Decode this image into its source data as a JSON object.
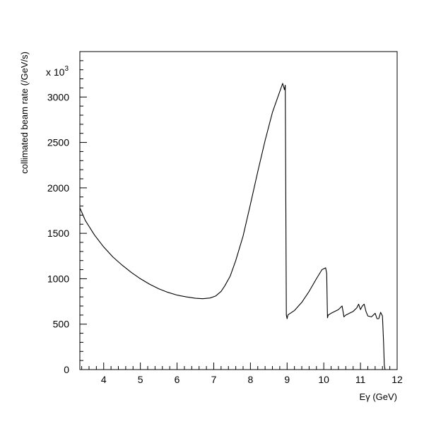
{
  "chart_data": {
    "type": "line",
    "title": "",
    "xlabel": "Eγ (GeV)",
    "ylabel": "collimated beam rate (/GeV/s)",
    "y_multiplier": "x 10",
    "y_multiplier_exponent": "3",
    "xlim": [
      3.35,
      12
    ],
    "ylim": [
      0,
      3500
    ],
    "grid": false,
    "legend": "none",
    "x_ticks": [
      4,
      5,
      6,
      7,
      8,
      9,
      10,
      11,
      12
    ],
    "y_ticks": [
      0,
      500,
      1000,
      1500,
      2000,
      2500,
      3000
    ],
    "x_tick_labels": [
      "4",
      "5",
      "6",
      "7",
      "8",
      "9",
      "10",
      "11",
      "12"
    ],
    "y_tick_labels": [
      "0",
      "500",
      "1000",
      "1500",
      "2000",
      "2500",
      "3000"
    ],
    "series": [
      {
        "x": [
          3.35,
          3.5,
          3.75,
          4.0,
          4.25,
          4.5,
          4.75,
          5.0,
          5.25,
          5.5,
          5.75,
          6.0,
          6.25,
          6.5,
          6.7,
          6.9,
          7.05,
          7.2,
          7.3,
          7.45,
          7.6,
          7.8,
          8.0,
          8.2,
          8.4,
          8.6,
          8.8,
          8.88,
          8.93,
          8.95,
          8.98,
          9.0,
          9.02,
          9.05,
          9.2,
          9.4,
          9.6,
          9.8,
          9.95,
          10.05,
          10.08,
          10.1,
          10.12,
          10.2,
          10.4,
          10.5,
          10.55,
          10.6,
          10.7,
          10.8,
          10.9,
          10.95,
          11.0,
          11.05,
          11.1,
          11.15,
          11.2,
          11.3,
          11.4,
          11.45,
          11.5,
          11.55,
          11.6,
          11.63,
          11.65,
          11.67
        ],
        "y": [
          1780,
          1640,
          1480,
          1350,
          1240,
          1150,
          1070,
          1000,
          940,
          890,
          850,
          820,
          800,
          785,
          780,
          788,
          810,
          860,
          920,
          1030,
          1200,
          1470,
          1820,
          2180,
          2520,
          2830,
          3060,
          3150,
          3080,
          3130,
          600,
          560,
          600,
          610,
          650,
          740,
          860,
          1000,
          1100,
          1120,
          1060,
          570,
          600,
          620,
          660,
          700,
          580,
          600,
          620,
          640,
          680,
          720,
          660,
          700,
          720,
          640,
          590,
          580,
          620,
          560,
          560,
          630,
          590,
          300,
          50,
          0
        ]
      }
    ]
  }
}
